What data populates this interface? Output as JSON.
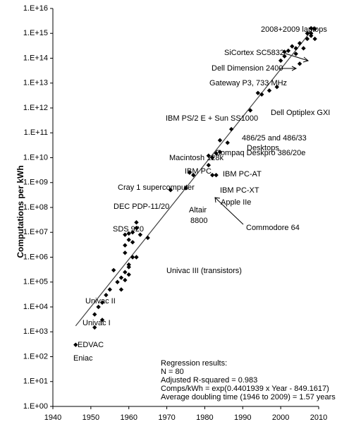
{
  "chart_data": {
    "type": "scatter",
    "y_label": "Computations per kWh",
    "yscale": "log",
    "x": [
      1946,
      1951,
      1951,
      1952,
      1953,
      1953,
      1954,
      1955,
      1956,
      1957,
      1958,
      1959,
      1959,
      1960,
      1960,
      1960,
      1961,
      1962,
      1959,
      1959,
      1959,
      1960,
      1960,
      1961,
      1961,
      1962,
      1962,
      1963,
      1965,
      1958,
      1971,
      1975,
      1976,
      1977,
      1981,
      1981,
      1982,
      1983,
      1982,
      1983,
      1984,
      1984,
      1986,
      1987,
      1992,
      1994,
      1995,
      1997,
      1999,
      2000,
      2001,
      2001,
      2002,
      2003,
      2004,
      2004,
      2005,
      2006,
      2007,
      2007,
      2008,
      2008,
      2008,
      2009,
      2009,
      2005
    ],
    "values": [
      300,
      1500,
      5000,
      10000,
      3000,
      15000,
      30000,
      50000,
      300000,
      100000,
      150000,
      250000,
      120000,
      400000,
      500000,
      200000,
      1000000,
      1000000,
      1500000,
      3000000,
      8000000,
      5000000,
      9000000,
      10000000,
      4000000,
      15000000,
      25000000,
      8000000,
      6000000,
      50000,
      500000000,
      600000000,
      2500000000,
      2000000000,
      12000000000,
      5000000000,
      2000000000,
      2000000000,
      10000000000,
      15000000000,
      17000000000,
      50000000000,
      40000000000,
      140000000000,
      800000000000,
      4000000000000,
      3500000000000,
      5000000000000,
      7000000000000,
      80000000000000,
      120000000000000,
      180000000000000,
      200000000000000,
      300000000000000,
      250000000000000,
      150000000000000,
      60000000000000,
      250000000000000,
      600000000000000,
      1000000000000000,
      1600000000000000,
      1000000000000000,
      800000000000000,
      1500000000000000,
      600000000000000,
      400000000000000
    ],
    "color": "#000000",
    "trendline": {
      "x": [
        1946,
        2009
      ],
      "values": [
        1730,
        1900000000000000
      ]
    },
    "xlim": [
      1940,
      2010
    ],
    "xticks": [
      1940,
      1950,
      1960,
      1970,
      1980,
      1990,
      2000,
      2010
    ],
    "ylim": [
      1,
      10000000000000000
    ],
    "yticks": [
      {
        "value": 1,
        "label": "1.E+00"
      },
      {
        "value": 10,
        "label": "1.E+01"
      },
      {
        "value": 100,
        "label": "1.E+02"
      },
      {
        "value": 1000,
        "label": "1.E+03"
      },
      {
        "value": 10000,
        "label": "1.E+04"
      },
      {
        "value": 100000,
        "label": "1.E+05"
      },
      {
        "value": 1000000,
        "label": "1.E+06"
      },
      {
        "value": 10000000,
        "label": "1.E+07"
      },
      {
        "value": 100000000,
        "label": "1.E+08"
      },
      {
        "value": 1000000000,
        "label": "1.E+09"
      },
      {
        "value": 10000000000,
        "label": "1.E+10"
      },
      {
        "value": 100000000000,
        "label": "1.E+11"
      },
      {
        "value": 1000000000000,
        "label": "1.E+12"
      },
      {
        "value": 10000000000000,
        "label": "1.E+13"
      },
      {
        "value": 100000000000000,
        "label": "1.E+14"
      },
      {
        "value": 1000000000000000,
        "label": "1.E+15"
      },
      {
        "value": 10000000000000000,
        "label": "1.E+16"
      }
    ],
    "annotations": [
      "2008+2009 laptops",
      "SiCortex SC5832",
      "Dell Dimension 2400",
      "Gateway P3, 733 MHz",
      "Dell Optiplex GXI",
      "IBM PS/2 E + Sun SS1000",
      "486/25 and 486/33",
      "Desktops",
      "Compaq Deskpro 386/20e",
      "Macintosh 128k",
      "IBM PC",
      "IBM PC-AT",
      "IBM PC-XT",
      "Cray 1 supercomputer",
      "Apple IIe",
      "DEC PDP-11/20",
      "Altair",
      "8800",
      "Commodore 64",
      "SDS 920",
      "Univac III (transistors)",
      "Univac II",
      "Univac I",
      "EDVAC",
      "Eniac"
    ],
    "regression_text": [
      "Regression results:",
      "N = 80",
      "Adjusted R-squared = 0.983",
      "Comps/kWh = exp(0.4401939 x Year - 849.1617)",
      "Average doubling time (1946 to 2009) = 1.57 years"
    ]
  }
}
